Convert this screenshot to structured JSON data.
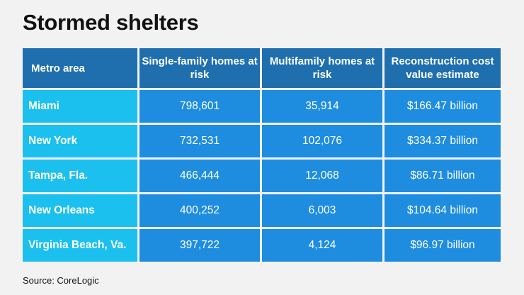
{
  "title": "Stormed shelters",
  "source": "Source: CoreLogic",
  "colors": {
    "header_bg": "#1f6fae",
    "metro_bg": "#1cc0ef",
    "value_bg": "#1e8de0",
    "page_bg": "#f2f2f2"
  },
  "chart_data": {
    "type": "table",
    "title": "Stormed shelters",
    "columns": [
      "Metro area",
      "Single-family homes at risk",
      "Multifamily homes at risk",
      "Reconstruction cost value estimate"
    ],
    "rows": [
      [
        "Miami",
        "798,601",
        "35,914",
        "$166.47 billion"
      ],
      [
        "New York",
        "732,531",
        "102,076",
        "$334.37 billion"
      ],
      [
        "Tampa, Fla.",
        "466,444",
        "12,068",
        "$86.71 billion"
      ],
      [
        "New Orleans",
        "400,252",
        "6,003",
        "$104.64 billion"
      ],
      [
        "Virginia Beach, Va.",
        "397,722",
        "4,124",
        "$96.97 billion"
      ]
    ],
    "source": "Source: CoreLogic"
  }
}
